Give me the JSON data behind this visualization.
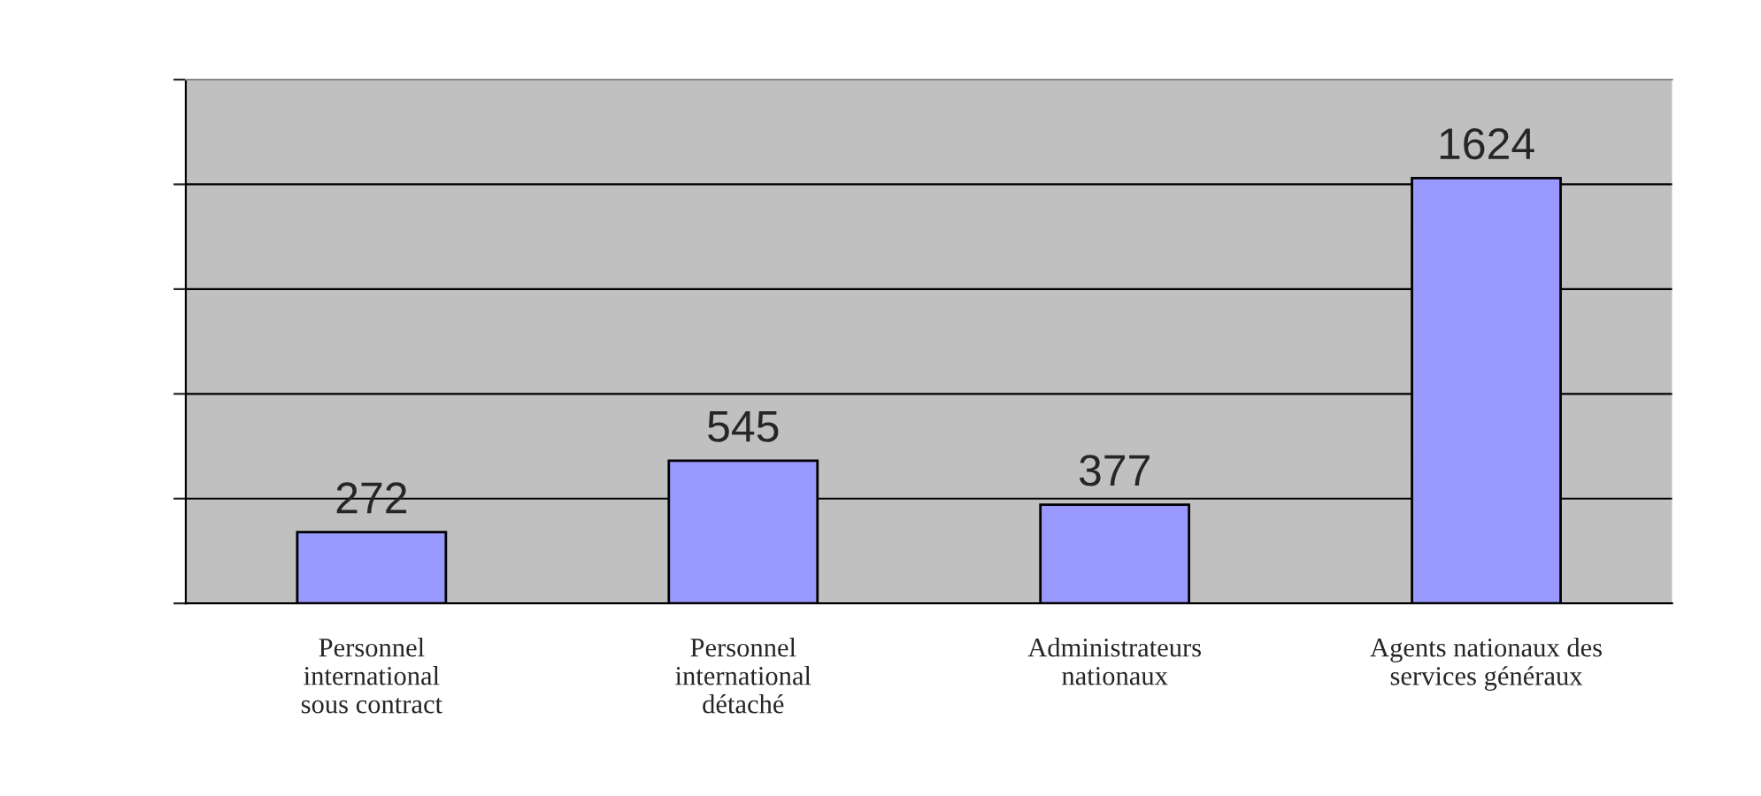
{
  "chart_data": {
    "type": "bar",
    "categories": [
      "Personnel\ninternational\nsous contract",
      "Personnel\ninternational\ndétaché",
      "Administrateurs\nnationaux",
      "Agents nationaux des\nservices généraux"
    ],
    "values": [
      272,
      545,
      377,
      1624
    ],
    "color": "#9999ff",
    "ylim": [
      0,
      2000
    ],
    "yticks": [
      {
        "value": 0,
        "label": null
      },
      {
        "value": 400,
        "label": null
      },
      {
        "value": 800,
        "label": null
      },
      {
        "value": 1200,
        "label": null
      },
      {
        "value": 1600,
        "label": null
      },
      {
        "value": 2000,
        "label": null
      }
    ],
    "grid": "y",
    "data_labels": true,
    "tick_labels": "x"
  }
}
